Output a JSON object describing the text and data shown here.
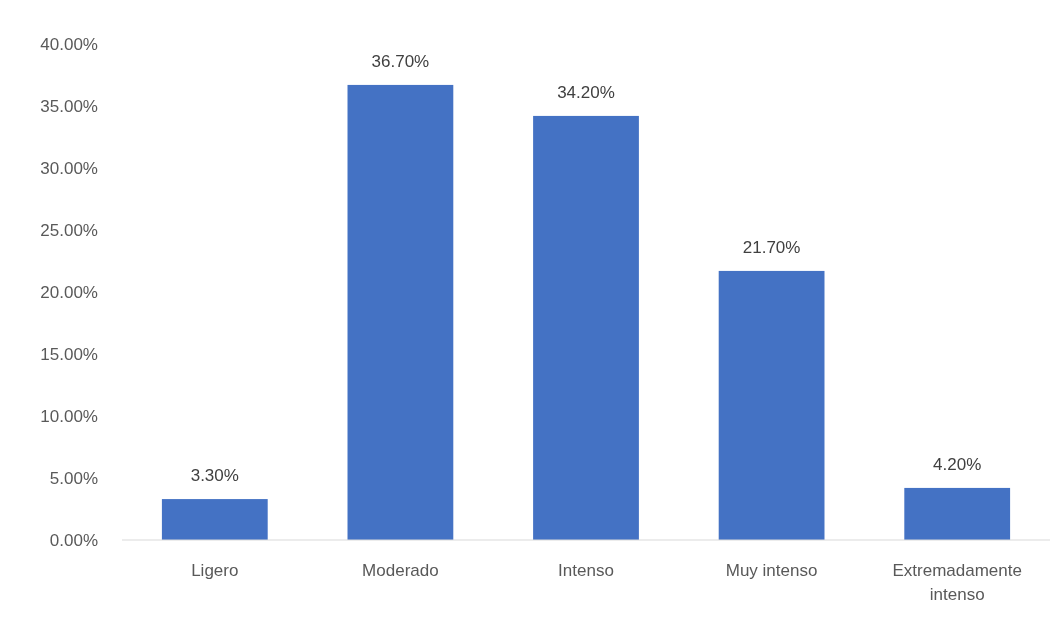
{
  "chart_data": {
    "type": "bar",
    "categories": [
      "Ligero",
      "Moderado",
      "Intenso",
      "Muy intenso",
      "Extremadamente intenso"
    ],
    "values": [
      3.3,
      36.7,
      34.2,
      21.7,
      4.2
    ],
    "value_labels": [
      "3.30%",
      "36.70%",
      "34.20%",
      "21.70%",
      "4.20%"
    ],
    "color": "#4472c4",
    "ylim": [
      0,
      40
    ],
    "yticks": [
      {
        "value": 0,
        "label": "0.00%"
      },
      {
        "value": 5,
        "label": "5.00%"
      },
      {
        "value": 10,
        "label": "10.00%"
      },
      {
        "value": 15,
        "label": "15.00%"
      },
      {
        "value": 20,
        "label": "20.00%"
      },
      {
        "value": 25,
        "label": "25.00%"
      },
      {
        "value": 30,
        "label": "30.00%"
      },
      {
        "value": 35,
        "label": "35.00%"
      },
      {
        "value": 40,
        "label": "40.00%"
      }
    ],
    "grid": false
  }
}
